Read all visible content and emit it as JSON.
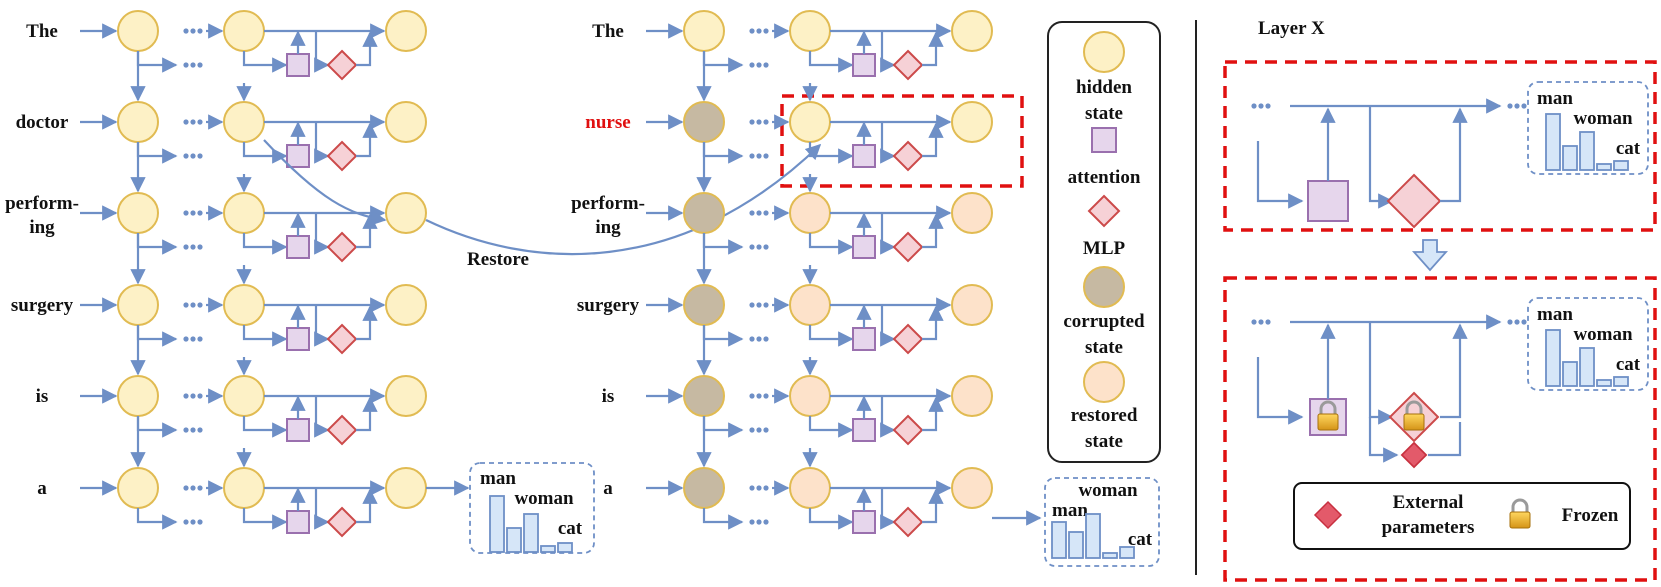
{
  "left_tokens": [
    "The",
    "doctor",
    "perform-|ing",
    "surgery",
    "is",
    "a"
  ],
  "middle_tokens": [
    "The",
    "nurse",
    "perform-|ing",
    "surgery",
    "is",
    "a"
  ],
  "restore_label": "Restore",
  "left_output": {
    "words": [
      "man",
      "woman",
      "cat"
    ]
  },
  "middle_output": {
    "words": [
      "woman",
      "man",
      "cat"
    ]
  },
  "legend": {
    "hidden": "hidden|state",
    "attention": "attention",
    "mlp": "MLP",
    "corrupted": "corrupted|state",
    "restored": "restored|state"
  },
  "right": {
    "title": "Layer X",
    "top_words": [
      "man",
      "woman",
      "cat"
    ],
    "bottom_words": [
      "man",
      "woman",
      "cat"
    ],
    "bottom_legend": {
      "external": "External|parameters",
      "frozen": "Frozen"
    }
  },
  "colors": {
    "hidden_fill": "#fdf1c6",
    "hidden_stroke": "#e1bb52",
    "corrupted_fill": "#c6b9a2",
    "restored_fill": "#fde2ca",
    "attn_fill": "#e6d6ec",
    "attn_stroke": "#9a70ae",
    "mlp_fill": "#f6d1d6",
    "mlp_stroke": "#cc4a4a",
    "arrow": "#6e8fc6",
    "dash_red": "#e01010",
    "dash_blue": "#6e8fc6"
  }
}
